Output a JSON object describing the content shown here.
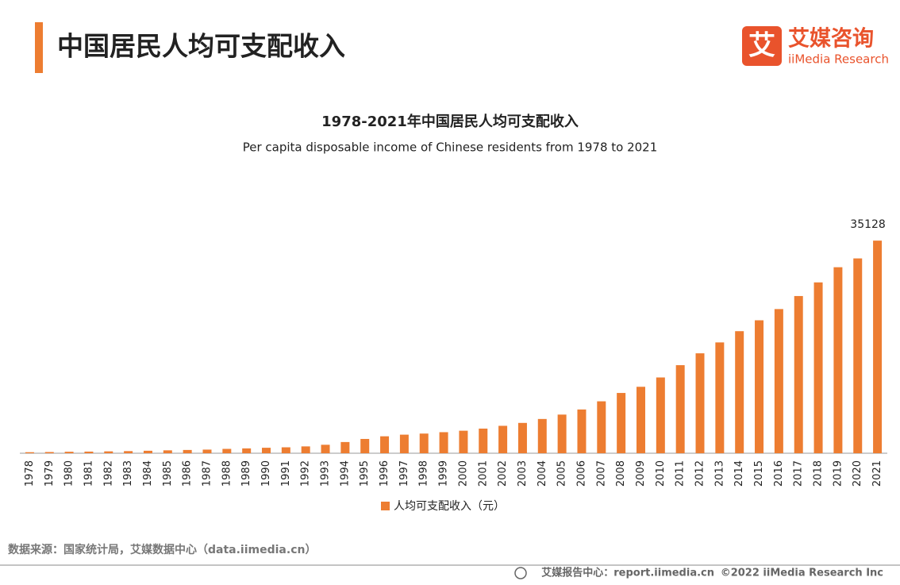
{
  "header": {
    "title": "中国居民人均可支配收入",
    "logo_icon": "艾",
    "logo_name": "艾媒咨询",
    "logo_sub": "iiMedia Research"
  },
  "chart_data": {
    "type": "bar",
    "title": "1978-2021年中国居民人均可支配收入",
    "subtitle": "Per capita disposable income of Chinese residents from 1978 to 2021",
    "categories": [
      "1978",
      "1979",
      "1980",
      "1981",
      "1982",
      "1983",
      "1984",
      "1985",
      "1986",
      "1987",
      "1988",
      "1989",
      "1990",
      "1991",
      "1992",
      "1993",
      "1994",
      "1995",
      "1996",
      "1997",
      "1998",
      "1999",
      "2000",
      "2001",
      "2002",
      "2003",
      "2004",
      "2005",
      "2006",
      "2007",
      "2008",
      "2009",
      "2010",
      "2011",
      "2012",
      "2013",
      "2014",
      "2015",
      "2016",
      "2017",
      "2018",
      "2019",
      "2020",
      "2021"
    ],
    "series": [
      {
        "name": "人均可支配收入（元）",
        "color": "#ed7d31",
        "values": [
          171,
          200,
          247,
          270,
          310,
          350,
          410,
          479,
          540,
          600,
          720,
          800,
          904,
          980,
          1130,
          1400,
          1850,
          2363,
          2800,
          3070,
          3250,
          3480,
          3721,
          4070,
          4530,
          5010,
          5660,
          6385,
          7230,
          8580,
          9960,
          10980,
          12520,
          14550,
          16510,
          18311,
          20167,
          21966,
          23821,
          25974,
          28228,
          30733,
          32189,
          35128
        ]
      }
    ],
    "ylim": [
      0,
      40000
    ],
    "grid": false,
    "data_labels": "last",
    "legend": "bottom"
  },
  "footer": {
    "source": "数据来源：国家统计局，艾媒数据中心（data.iimedia.cn）",
    "report": "艾媒报告中心：report.iimedia.cn",
    "copyright": "©2022 iiMedia Research Inc"
  }
}
